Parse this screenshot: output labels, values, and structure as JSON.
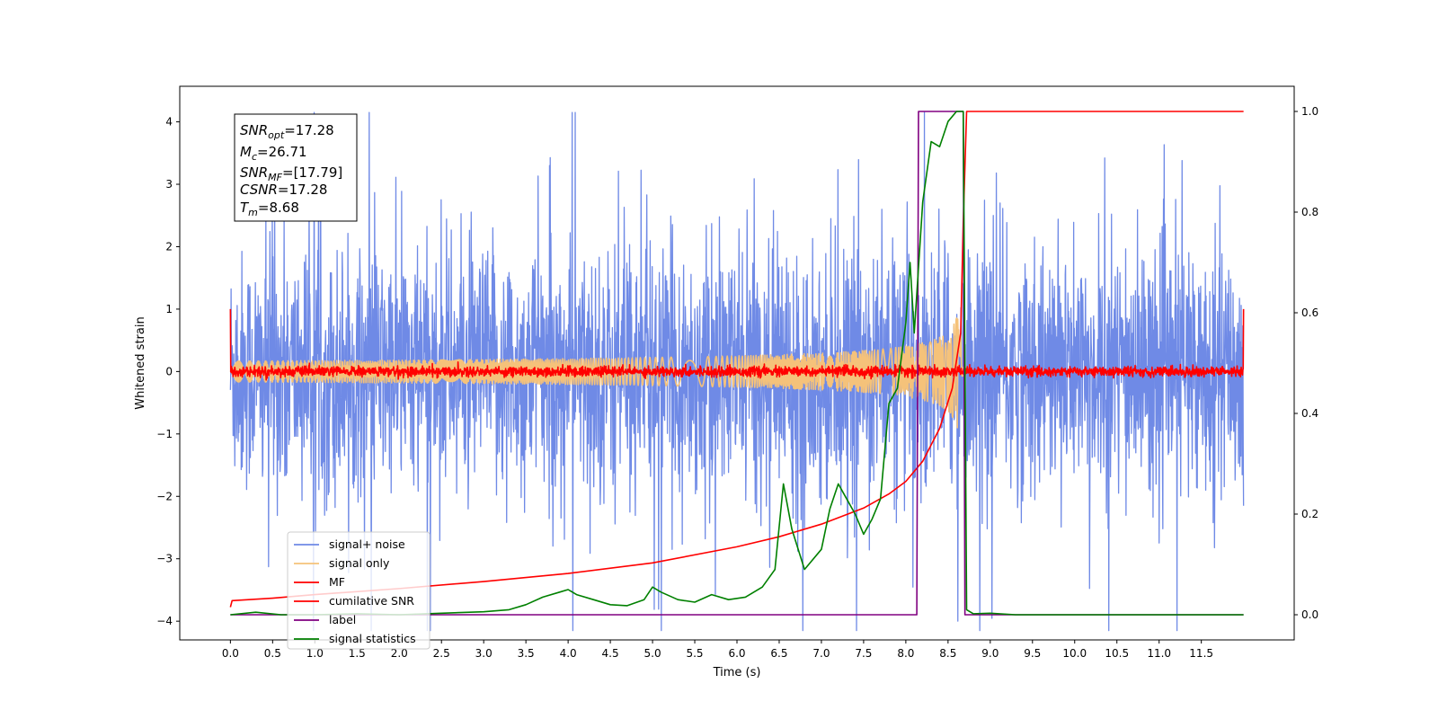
{
  "chart_data": {
    "type": "line",
    "xlabel": "Time (s)",
    "ylabel": "Whitened strain",
    "xlim": [
      -0.6,
      12.6
    ],
    "ylim": [
      -4.3,
      4.57
    ],
    "y2lim": [
      -0.05,
      1.05
    ],
    "x_ticks": [
      "0.0",
      "0.5",
      "1.0",
      "1.5",
      "2.0",
      "2.5",
      "3.0",
      "3.5",
      "4.0",
      "4.5",
      "5.0",
      "5.5",
      "6.0",
      "6.5",
      "7.0",
      "7.5",
      "8.0",
      "8.5",
      "9.0",
      "9.5",
      "10.0",
      "10.5",
      "11.0",
      "11.5"
    ],
    "y_ticks": [
      "4",
      "3",
      "2",
      "1",
      "0",
      "−1",
      "−2",
      "−3",
      "−4"
    ],
    "y2_ticks": [
      "1.0",
      "0.8",
      "0.6",
      "0.4",
      "0.2",
      "0.0"
    ],
    "grid": false,
    "legend_position": "lower-left",
    "annotation": {
      "lines": [
        {
          "name": "SNR",
          "sub": "opt",
          "value": "=17.28"
        },
        {
          "name": "M",
          "sub": "c",
          "value": "=26.71"
        },
        {
          "name": "SNR",
          "sub": "MF",
          "value": "=[17.79]"
        },
        {
          "name": "CSNR",
          "sub": "",
          "value": "=17.28"
        },
        {
          "name": "T",
          "sub": "m",
          "value": "=8.68"
        }
      ]
    },
    "series": [
      {
        "name": "signal+ noise",
        "axis": "left",
        "color": "#6f8ae6",
        "kind": "noise",
        "t_start": 0.0,
        "t_end": 12.0,
        "std": 0.95,
        "max_abs": 4.15
      },
      {
        "name": "signal only",
        "axis": "left",
        "color": "#f5c27a",
        "kind": "chirp",
        "t_start": 0.0,
        "t_merge": 8.68,
        "t_end": 12.0,
        "peak_amplitude": 1.4
      },
      {
        "name": "MF",
        "axis": "left",
        "color": "#ff0000",
        "kind": "noise",
        "t_start": 0.0,
        "t_end": 12.0,
        "std": 0.04,
        "edge_value": 1.0
      },
      {
        "name": "cumilative SNR",
        "axis": "right",
        "color": "#ff0000",
        "x": [
          0.0,
          0.02,
          0.5,
          1.0,
          2.0,
          3.0,
          4.0,
          5.0,
          6.0,
          6.5,
          7.0,
          7.5,
          7.8,
          8.0,
          8.2,
          8.4,
          8.55,
          8.65,
          8.68,
          8.72,
          12.0
        ],
        "y": [
          0.015,
          0.028,
          0.033,
          0.04,
          0.052,
          0.066,
          0.082,
          0.103,
          0.135,
          0.155,
          0.18,
          0.212,
          0.24,
          0.265,
          0.305,
          0.37,
          0.45,
          0.56,
          0.78,
          1.0,
          1.0
        ]
      },
      {
        "name": "label",
        "axis": "right",
        "color": "#800080",
        "x": [
          0.0,
          8.13,
          8.15,
          8.68,
          8.7,
          12.0
        ],
        "y": [
          0.0,
          0.0,
          1.0,
          1.0,
          0.0,
          0.0
        ]
      },
      {
        "name": "signal statistics",
        "axis": "right",
        "color": "#008000",
        "x": [
          0.0,
          0.3,
          0.6,
          1.0,
          1.5,
          2.0,
          2.5,
          3.0,
          3.3,
          3.5,
          3.7,
          3.9,
          4.0,
          4.1,
          4.3,
          4.5,
          4.7,
          4.9,
          5.0,
          5.1,
          5.3,
          5.5,
          5.7,
          5.9,
          6.1,
          6.3,
          6.45,
          6.55,
          6.65,
          6.8,
          7.0,
          7.1,
          7.2,
          7.3,
          7.4,
          7.5,
          7.6,
          7.7,
          7.8,
          7.9,
          8.0,
          8.05,
          8.1,
          8.2,
          8.3,
          8.4,
          8.5,
          8.6,
          8.68,
          8.72,
          8.8,
          9.0,
          9.3,
          12.0
        ],
        "y": [
          0.0,
          0.005,
          0.0,
          0.0,
          0.002,
          0.0,
          0.003,
          0.006,
          0.01,
          0.02,
          0.035,
          0.045,
          0.05,
          0.04,
          0.03,
          0.02,
          0.018,
          0.03,
          0.055,
          0.045,
          0.03,
          0.025,
          0.04,
          0.03,
          0.035,
          0.055,
          0.09,
          0.26,
          0.17,
          0.09,
          0.13,
          0.21,
          0.26,
          0.23,
          0.2,
          0.16,
          0.19,
          0.23,
          0.42,
          0.45,
          0.58,
          0.7,
          0.56,
          0.82,
          0.94,
          0.93,
          0.98,
          1.0,
          1.0,
          0.01,
          0.002,
          0.003,
          0.0,
          0.0
        ]
      }
    ]
  }
}
